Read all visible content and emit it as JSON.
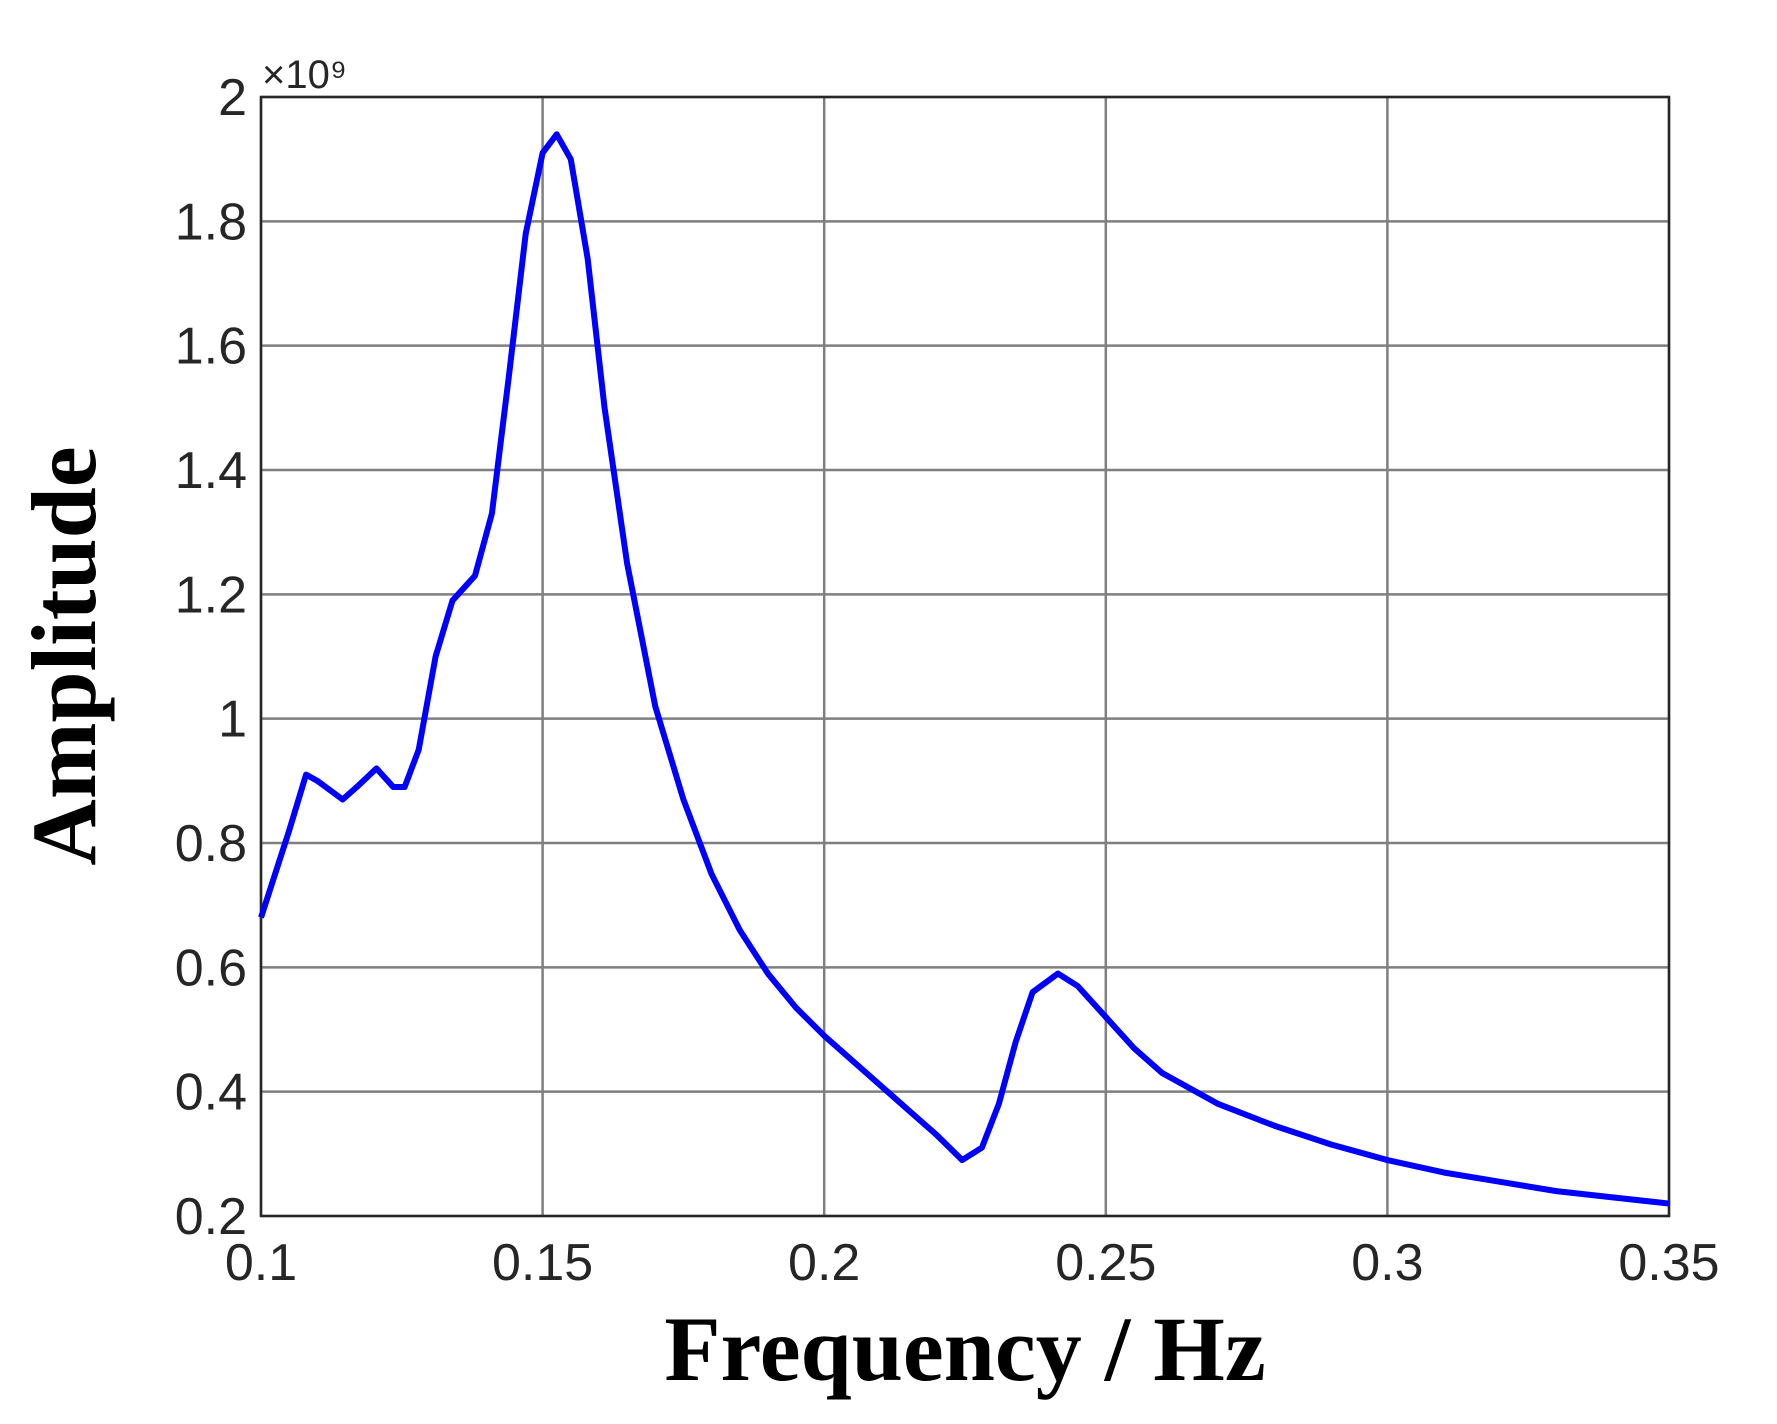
{
  "chart_data": {
    "type": "line",
    "x_label": "Frequency / Hz",
    "y_label": "Amplitude",
    "y_multiplier": "×10⁹",
    "x": [
      0.1,
      0.105,
      0.108,
      0.11,
      0.1145,
      0.117,
      0.1205,
      0.1235,
      0.1255,
      0.128,
      0.131,
      0.134,
      0.138,
      0.141,
      0.144,
      0.147,
      0.15,
      0.1525,
      0.155,
      0.158,
      0.161,
      0.165,
      0.17,
      0.175,
      0.18,
      0.185,
      0.19,
      0.195,
      0.2,
      0.205,
      0.21,
      0.215,
      0.22,
      0.2245,
      0.228,
      0.231,
      0.234,
      0.237,
      0.2415,
      0.245,
      0.25,
      0.255,
      0.26,
      0.27,
      0.28,
      0.29,
      0.3,
      0.31,
      0.32,
      0.33,
      0.34,
      0.35
    ],
    "series": [
      {
        "name": "Amplitude",
        "color": "#0000ff",
        "values": [
          0.68,
          0.82,
          0.91,
          0.9,
          0.87,
          0.89,
          0.92,
          0.89,
          0.89,
          0.95,
          1.1,
          1.19,
          1.23,
          1.33,
          1.55,
          1.78,
          1.91,
          1.94,
          1.9,
          1.74,
          1.5,
          1.25,
          1.02,
          0.87,
          0.75,
          0.66,
          0.59,
          0.535,
          0.49,
          0.45,
          0.41,
          0.37,
          0.33,
          0.29,
          0.31,
          0.38,
          0.48,
          0.56,
          0.59,
          0.57,
          0.52,
          0.47,
          0.43,
          0.38,
          0.345,
          0.315,
          0.29,
          0.27,
          0.255,
          0.24,
          0.23,
          0.22
        ]
      }
    ],
    "xlim": [
      0.1,
      0.35
    ],
    "xticks": [
      0.1,
      0.15,
      0.2,
      0.25,
      0.3,
      0.35
    ],
    "ylim": [
      0.2,
      2
    ],
    "yticks": [
      0.2,
      0.4,
      0.6,
      0.8,
      1,
      1.2,
      1.4,
      1.6,
      1.8,
      2
    ],
    "grid": true
  }
}
